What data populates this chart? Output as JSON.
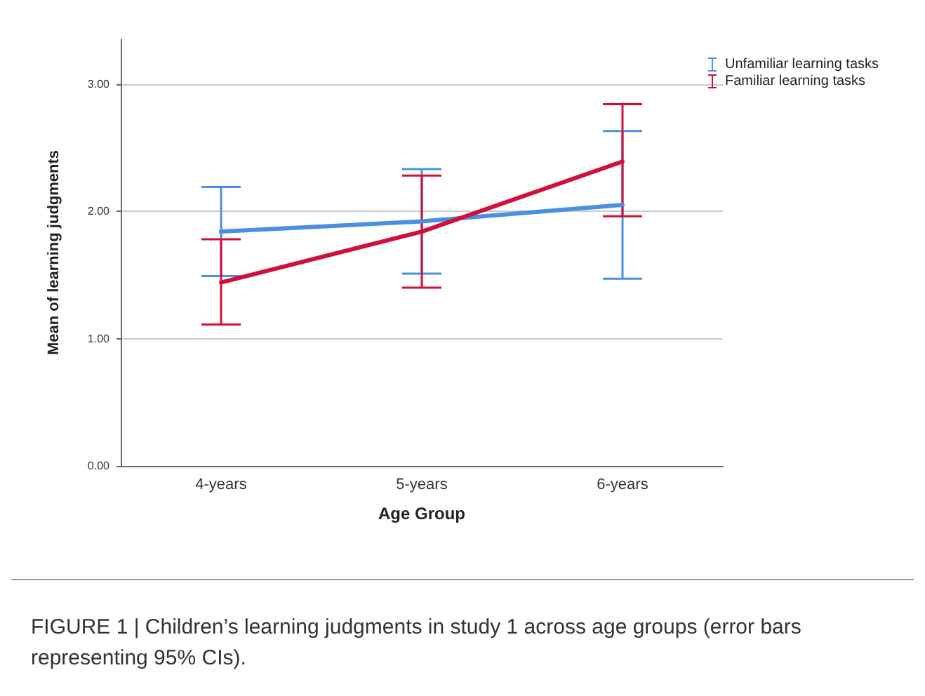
{
  "chart_data": {
    "type": "line",
    "xlabel": "Age Group",
    "ylabel": "Mean of learning judgments",
    "categories": [
      "4-years",
      "5-years",
      "6-years"
    ],
    "series": [
      {
        "name": "Unfamiliar learning tasks",
        "color": "#4a90e2",
        "values": [
          1.84,
          1.92,
          2.05
        ],
        "errors": [
          [
            1.49,
            2.19
          ],
          [
            1.51,
            2.33
          ],
          [
            1.47,
            2.63
          ]
        ]
      },
      {
        "name": "Familiar learning tasks",
        "color": "#d0103a",
        "values": [
          1.44,
          1.84,
          2.39
        ],
        "errors": [
          [
            1.11,
            1.78
          ],
          [
            1.4,
            2.28
          ],
          [
            1.96,
            2.84
          ]
        ]
      }
    ],
    "ylim": [
      0,
      3.35
    ],
    "yticks": [
      {
        "value": 0,
        "label": "0.00"
      },
      {
        "value": 1,
        "label": "1.00"
      },
      {
        "value": 2,
        "label": "2.00"
      },
      {
        "value": 3,
        "label": "3.00"
      }
    ],
    "grid": "y",
    "legend": "top right",
    "marker": "none",
    "line_style": "solid",
    "annotations": [
      "FIGURE 1 | Children’s learning judgments in study 1 across age groups (error bars representing 95% CIs)."
    ]
  }
}
